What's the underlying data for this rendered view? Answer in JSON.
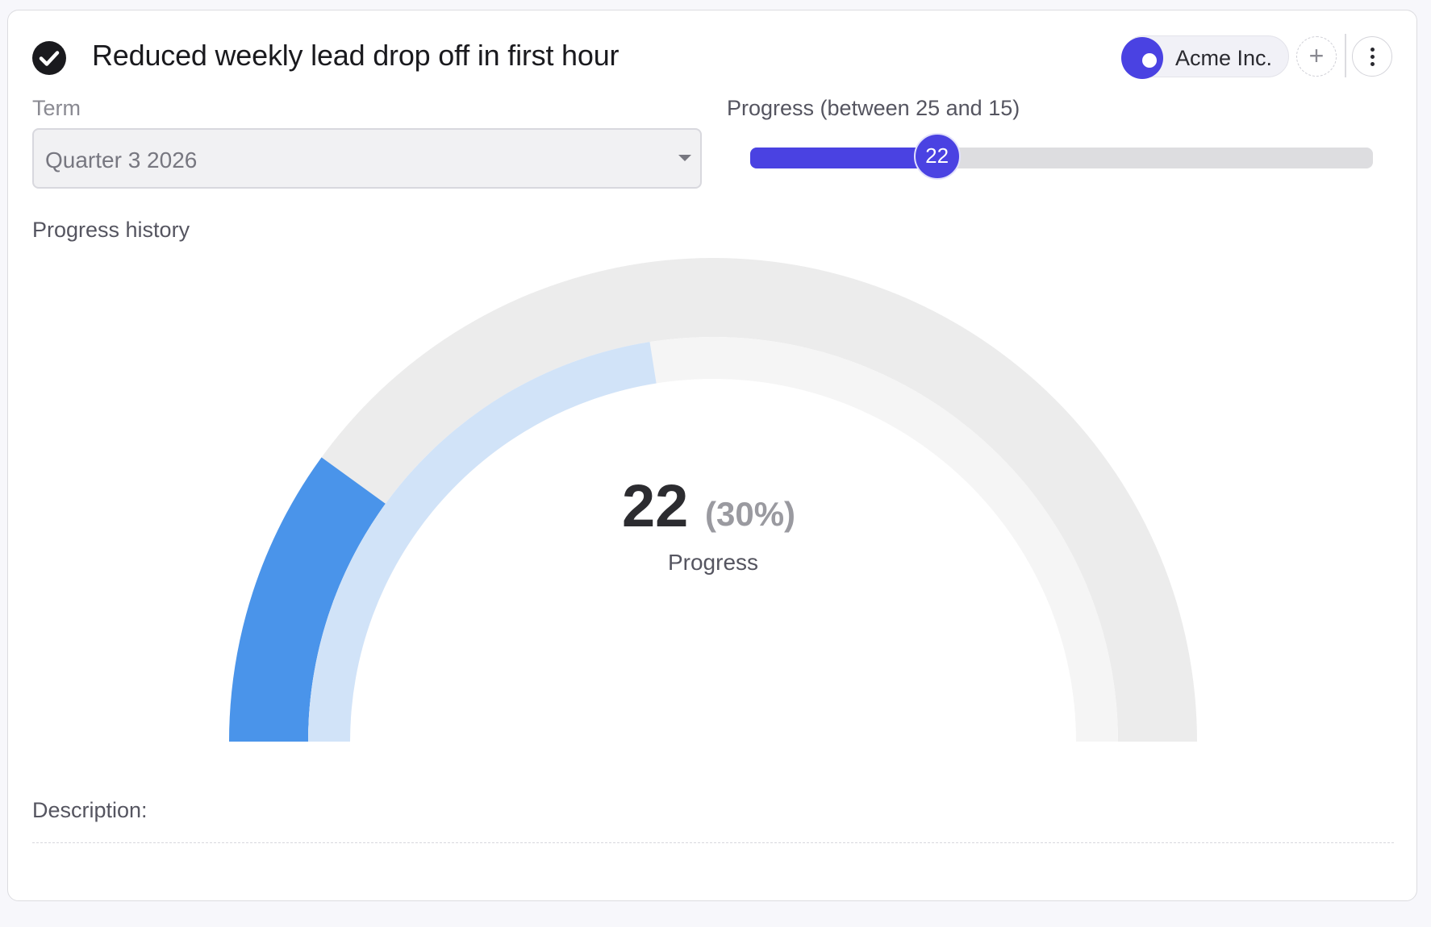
{
  "header": {
    "title": "Reduced weekly lead drop off in first hour",
    "org_chip_label": "Acme Inc.",
    "add_icon": "+"
  },
  "term": {
    "label": "Term",
    "value": "Quarter 3 2026"
  },
  "progress": {
    "label": "Progress (between 25 and 15)",
    "value": "22",
    "fill_fraction": 0.3
  },
  "history": {
    "label": "Progress history"
  },
  "gauge": {
    "value_text": "22",
    "percent_text": "(30%)",
    "caption": "Progress",
    "percent": 30,
    "outer_fraction": 0.2,
    "inner_fraction": 0.45
  },
  "description": {
    "label": "Description:"
  },
  "colors": {
    "accent": "#4a42e2",
    "gauge_outer": "#4a94ea",
    "gauge_outer_track": "#ececec",
    "gauge_inner": "#d1e3f8",
    "gauge_inner_track": "#f5f5f5"
  }
}
